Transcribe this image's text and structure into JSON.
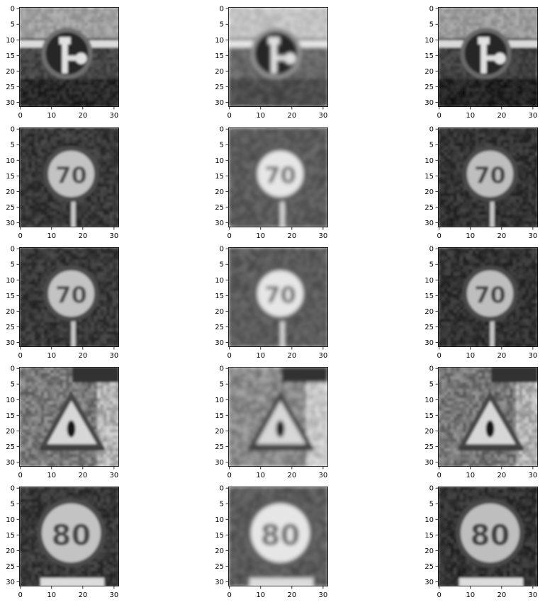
{
  "chart_data": {
    "type": "image-grid",
    "rows": 5,
    "cols": 3,
    "colormap": "gray",
    "image_size": [
      32,
      32
    ],
    "xlim": [
      0,
      32
    ],
    "ylim": [
      32,
      0
    ],
    "xticks": [
      0,
      10,
      20,
      30
    ],
    "yticks": [
      0,
      5,
      10,
      15,
      20,
      25,
      30
    ],
    "xtick_labels": [
      "0",
      "10",
      "20",
      "30"
    ],
    "ytick_labels": [
      "0",
      "5",
      "10",
      "15",
      "20",
      "25",
      "30"
    ],
    "grid": false,
    "panels": [
      {
        "row": 0,
        "col": 0,
        "content": "keep-right-sign"
      },
      {
        "row": 0,
        "col": 1,
        "content": "keep-right-sign"
      },
      {
        "row": 0,
        "col": 2,
        "content": "keep-right-sign"
      },
      {
        "row": 1,
        "col": 0,
        "content": "speed-limit-70-sign"
      },
      {
        "row": 1,
        "col": 1,
        "content": "speed-limit-70-sign"
      },
      {
        "row": 1,
        "col": 2,
        "content": "speed-limit-70-sign"
      },
      {
        "row": 2,
        "col": 0,
        "content": "speed-limit-70-sign"
      },
      {
        "row": 2,
        "col": 1,
        "content": "speed-limit-70-sign"
      },
      {
        "row": 2,
        "col": 2,
        "content": "speed-limit-70-sign"
      },
      {
        "row": 3,
        "col": 0,
        "content": "warning-triangle-sign"
      },
      {
        "row": 3,
        "col": 1,
        "content": "warning-triangle-sign"
      },
      {
        "row": 3,
        "col": 2,
        "content": "warning-triangle-sign"
      },
      {
        "row": 4,
        "col": 0,
        "content": "speed-limit-80-sign"
      },
      {
        "row": 4,
        "col": 1,
        "content": "speed-limit-80-sign"
      },
      {
        "row": 4,
        "col": 2,
        "content": "speed-limit-80-sign"
      }
    ]
  },
  "sign_text": {
    "speed_70": "70",
    "speed_80": "80"
  },
  "style": {
    "axes_color": "#000000",
    "background": "#ffffff"
  }
}
